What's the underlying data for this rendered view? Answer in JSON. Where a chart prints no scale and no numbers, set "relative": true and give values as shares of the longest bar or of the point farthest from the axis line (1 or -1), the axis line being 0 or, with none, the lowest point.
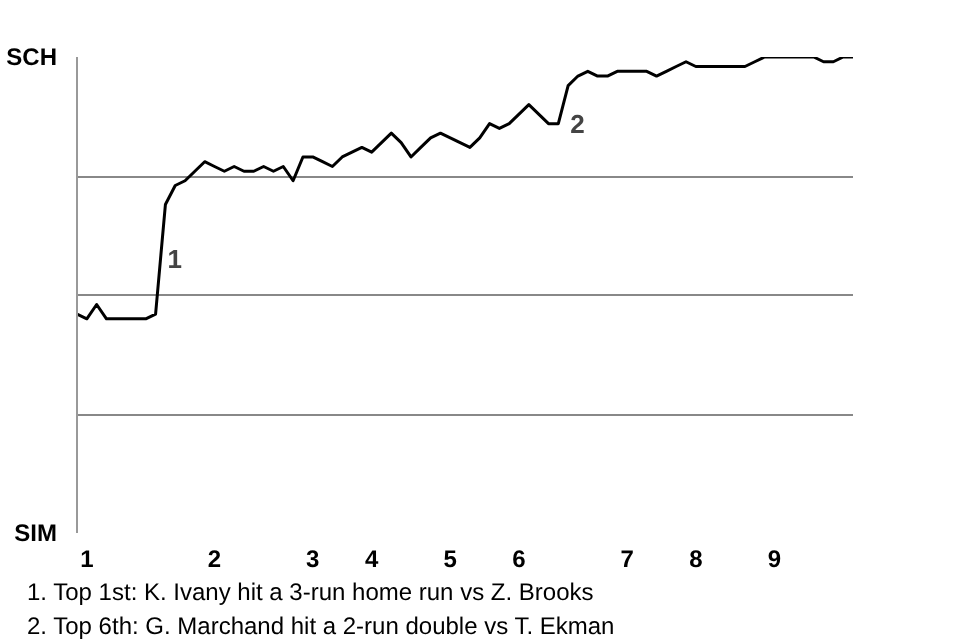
{
  "chart_data": {
    "type": "line",
    "relative": true,
    "categories": [
      null,
      "1",
      null,
      null,
      null,
      null,
      null,
      null,
      null,
      null,
      null,
      null,
      null,
      null,
      "2",
      null,
      null,
      null,
      null,
      null,
      null,
      null,
      null,
      null,
      "3",
      null,
      null,
      null,
      null,
      null,
      "4",
      null,
      null,
      null,
      null,
      null,
      null,
      null,
      "5",
      null,
      null,
      null,
      null,
      null,
      null,
      "6",
      null,
      null,
      null,
      null,
      null,
      null,
      null,
      null,
      null,
      null,
      "7",
      null,
      null,
      null,
      null,
      null,
      null,
      "8",
      null,
      null,
      null,
      null,
      null,
      null,
      null,
      "9",
      null,
      null,
      null,
      null,
      null,
      null,
      null,
      null
    ],
    "series": [
      {
        "color": "#000000",
        "values": [
          0.46,
          0.45,
          0.48,
          0.45,
          0.45,
          0.45,
          0.45,
          0.45,
          0.46,
          0.69,
          0.73,
          0.74,
          0.76,
          0.78,
          0.77,
          0.76,
          0.77,
          0.76,
          0.76,
          0.77,
          0.76,
          0.77,
          0.74,
          0.79,
          0.79,
          0.78,
          0.77,
          0.79,
          0.8,
          0.81,
          0.8,
          0.82,
          0.84,
          0.82,
          0.79,
          0.81,
          0.83,
          0.84,
          0.83,
          0.82,
          0.81,
          0.83,
          0.86,
          0.85,
          0.86,
          0.88,
          0.9,
          0.88,
          0.86,
          0.86,
          0.94,
          0.96,
          0.97,
          0.96,
          0.96,
          0.97,
          0.97,
          0.97,
          0.97,
          0.96,
          0.97,
          0.98,
          0.99,
          0.98,
          0.98,
          0.98,
          0.98,
          0.98,
          0.98,
          0.99,
          1.0,
          1.0,
          1.0,
          1.0,
          1.0,
          1.0,
          0.99,
          0.99,
          1.0,
          1.0
        ]
      }
    ],
    "grid": "y",
    "line_style": "solid",
    "annotations": [
      "SCH",
      "SIM",
      "1",
      "2",
      "1. Top 1st: K. Ivany hit a 3-run home run vs Z. Brooks",
      "2. Top 6th: G. Marchand hit a 2-run double vs T. Ekman"
    ]
  }
}
